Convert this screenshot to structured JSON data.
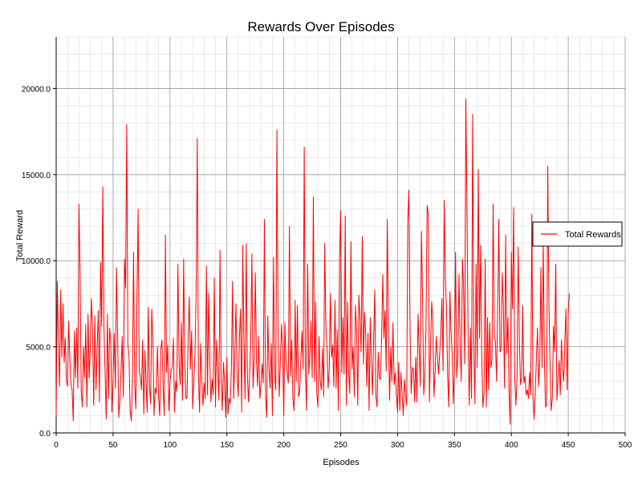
{
  "chart_data": {
    "type": "line",
    "title": "Rewards Over Episodes",
    "xlabel": "Episodes",
    "ylabel": "Total Reward",
    "xlim": [
      0,
      500
    ],
    "ylim": [
      0,
      23000
    ],
    "x_ticks": [
      0,
      50,
      100,
      150,
      200,
      250,
      300,
      350,
      400,
      450,
      500
    ],
    "x_tick_labels": [
      "0",
      "50",
      "100",
      "150",
      "200",
      "250",
      "300",
      "350",
      "400",
      "450",
      "500"
    ],
    "y_ticks": [
      0,
      5000,
      10000,
      15000,
      20000
    ],
    "y_tick_labels": [
      "0.0",
      "5000.0",
      "10000.0",
      "15000.0",
      "20000.0"
    ],
    "grid": true,
    "minor_grid": true,
    "legend_position": "right",
    "series": [
      {
        "name": "Total Rewards",
        "color": "#ff0000",
        "x_start": 0,
        "x_step": 1,
        "values": [
          1000,
          8800,
          5400,
          2700,
          8300,
          4400,
          7500,
          4100,
          5500,
          3000,
          2700,
          6500,
          4300,
          2800,
          2500,
          700,
          5900,
          3200,
          6100,
          2600,
          13300,
          9400,
          2400,
          1500,
          5000,
          3200,
          6300,
          1500,
          6900,
          3200,
          5000,
          7800,
          6000,
          1600,
          6800,
          2500,
          4900,
          7100,
          1800,
          9900,
          6200,
          14300,
          6100,
          3500,
          800,
          6900,
          2000,
          6100,
          5300,
          1200,
          3100,
          5800,
          2600,
          9600,
          5700,
          900,
          1900,
          3600,
          5600,
          2100,
          10100,
          8400,
          17900,
          5100,
          4500,
          1300,
          700,
          3000,
          10500,
          2800,
          1400,
          7600,
          13000,
          3600,
          3300,
          2500,
          5400,
          1100,
          4800,
          2900,
          1200,
          7300,
          2700,
          1700,
          7200,
          5400,
          1000,
          2600,
          2300,
          5000,
          2100,
          1000,
          4900,
          5400,
          2600,
          1000,
          11500,
          3500,
          5100,
          1300,
          2900,
          3600,
          3800,
          5500,
          1200,
          3000,
          2400,
          9800,
          4000,
          2800,
          6400,
          1900,
          10100,
          4400,
          2000,
          2000,
          5700,
          7900,
          3700,
          5900,
          1400,
          3100,
          4600,
          8300,
          17100,
          3500,
          1200,
          5200,
          3000,
          1600,
          2900,
          2000,
          9700,
          2200,
          8100,
          4200,
          1800,
          3100,
          2200,
          9000,
          1500,
          5400,
          3800,
          1900,
          10600,
          3200,
          1300,
          4100,
          3000,
          900,
          4400,
          1100,
          2000,
          1700,
          3800,
          8800,
          2000,
          4600,
          7500,
          3300,
          2100,
          5500,
          7200,
          1200,
          10900,
          5300,
          2000,
          11000,
          3400,
          1800,
          3300,
          5500,
          10400,
          2600,
          4200,
          9300,
          4200,
          2700,
          5600,
          2000,
          2800,
          4000,
          2900,
          12400,
          2100,
          900,
          6800,
          3800,
          2600,
          5200,
          1000,
          10200,
          3400,
          2500,
          17600,
          5800,
          2100,
          4100,
          6300,
          4800,
          1000,
          6400,
          4200,
          3500,
          2900,
          12000,
          3300,
          5400,
          2000,
          1300,
          7700,
          3000,
          7400,
          2100,
          2400,
          4200,
          5900,
          3700,
          16600,
          3700,
          1300,
          9800,
          3400,
          4600,
          6500,
          3200,
          13700,
          3000,
          7600,
          2400,
          1500,
          5600,
          3000,
          2500,
          4900,
          2100,
          11000,
          6300,
          4900,
          2600,
          3700,
          8100,
          4400,
          5100,
          2700,
          7700,
          2600,
          6000,
          1300,
          10100,
          12900,
          3500,
          6700,
          3400,
          12600,
          1600,
          7600,
          3500,
          2300,
          11100,
          3700,
          5000,
          2100,
          7400,
          6000,
          1600,
          8000,
          6700,
          4700,
          11400,
          4000,
          7000,
          5700,
          2700,
          5800,
          1300,
          6700,
          4200,
          2200,
          5600,
          8300,
          2100,
          1500,
          4700,
          3200,
          3100,
          5500,
          9200,
          5500,
          7100,
          3600,
          12400,
          5800,
          1900,
          5000,
          3000,
          6400,
          2800,
          3500,
          2200,
          1200,
          4100,
          1300,
          3500,
          2300,
          1000,
          3100,
          2200,
          1600,
          12400,
          14100,
          6000,
          2300,
          3800,
          3700,
          1800,
          4400,
          1800,
          6900,
          4900,
          2700,
          11700,
          7700,
          2200,
          3300,
          6200,
          13200,
          12700,
          1800,
          5100,
          7600,
          6600,
          2100,
          3500,
          5600,
          4500,
          3400,
          4600,
          5800,
          7800,
          3600,
          13500,
          9000,
          7300,
          3300,
          1500,
          8200,
          5900,
          4600,
          1700,
          3800,
          10500,
          3200,
          4500,
          9200,
          5000,
          3000,
          10100,
          8500,
          4000,
          19400,
          13200,
          5500,
          1600,
          6100,
          2000,
          18500,
          5100,
          1700,
          9800,
          3800,
          15300,
          5500,
          10900,
          4400,
          1500,
          2300,
          10100,
          1500,
          6700,
          2500,
          6400,
          3800,
          4300,
          13300,
          5700,
          5300,
          3000,
          7300,
          12400,
          4700,
          4800,
          9300,
          7400,
          2600,
          11500,
          4600,
          6700,
          2300,
          500,
          10500,
          7200,
          13100,
          3100,
          1600,
          3200,
          10800,
          5600,
          2800,
          3200,
          7400,
          2900,
          3300,
          2200,
          2500,
          2000,
          3500,
          2200,
          12700,
          2100,
          800,
          2300,
          4300,
          6100,
          2700,
          4300,
          9600,
          3800,
          11100,
          4400,
          1500,
          1600,
          15500,
          7600,
          4000,
          1300,
          2000,
          6200,
          4700,
          9800,
          1900,
          3000,
          4200,
          2200,
          5400,
          3800,
          3000,
          5200,
          7200,
          2500,
          6900,
          8100
        ]
      }
    ]
  }
}
